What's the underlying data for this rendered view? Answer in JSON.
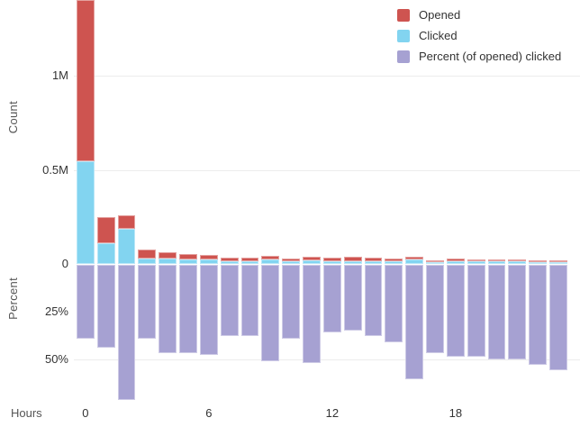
{
  "chart_data": {
    "type": "bar",
    "title": "",
    "xlabel": "Hours",
    "x_hours": [
      0,
      1,
      2,
      3,
      4,
      5,
      6,
      7,
      8,
      9,
      10,
      11,
      12,
      13,
      14,
      15,
      16,
      17,
      18,
      19,
      20,
      21,
      22,
      23
    ],
    "x_tick_hours": [
      0,
      6,
      12,
      18
    ],
    "panels": {
      "count": {
        "ylabel": "Count",
        "ylim": [
          0,
          1400000
        ],
        "direction": "up",
        "ticks": [
          {
            "label": "1M",
            "value": 1000000,
            "gridline": true
          },
          {
            "label": "0.5M",
            "value": 500000,
            "gridline": true
          },
          {
            "label": "0",
            "value": 0,
            "gridline": false
          }
        ]
      },
      "percent": {
        "ylabel": "Percent",
        "ylim": [
          0,
          72
        ],
        "direction": "down",
        "ticks": [
          {
            "label": "25%",
            "value": 25,
            "gridline": false
          },
          {
            "label": "50%",
            "value": 50,
            "gridline": true
          }
        ]
      }
    },
    "series": [
      {
        "name": "Opened",
        "color": "#ce5450",
        "panel": "count",
        "values": [
          1400000,
          250000,
          257000,
          75000,
          62000,
          54000,
          46000,
          33000,
          33000,
          43000,
          30000,
          37000,
          33000,
          38000,
          33000,
          30000,
          38000,
          19000,
          29000,
          24000,
          24000,
          24000,
          19000,
          17000
        ]
      },
      {
        "name": "Clicked",
        "color": "#82d4f0",
        "panel": "count",
        "values": [
          545000,
          110000,
          185000,
          29000,
          29000,
          25000,
          22000,
          13000,
          13000,
          22000,
          12000,
          19000,
          12000,
          13000,
          13000,
          12000,
          23000,
          9000,
          14000,
          12000,
          12000,
          12000,
          10000,
          9500
        ]
      },
      {
        "name": "Percent (of opened) clicked",
        "color": "#a6a1d2",
        "panel": "percent",
        "values": [
          39,
          44,
          72,
          39,
          47,
          47,
          48,
          38,
          38,
          51,
          39,
          52,
          36,
          35,
          38,
          41,
          61,
          47,
          49,
          49,
          50,
          50,
          53,
          56
        ]
      }
    ],
    "legend": {
      "position": "top-right"
    },
    "grid": true,
    "grid_color": "#ececec",
    "background_color": "#ffffff"
  }
}
